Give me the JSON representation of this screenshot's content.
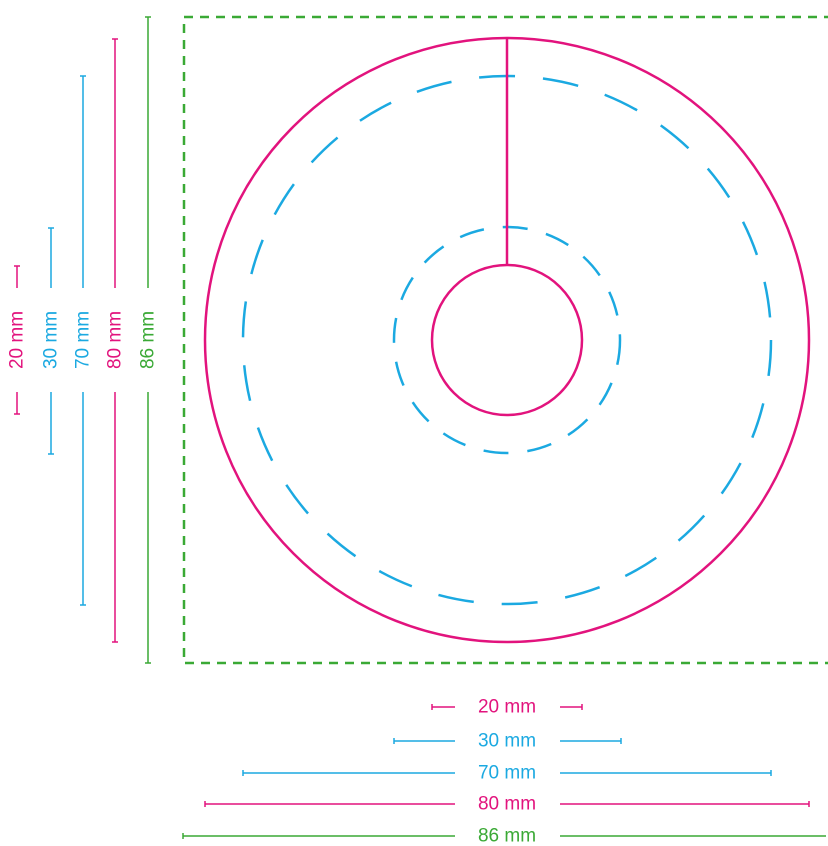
{
  "colors": {
    "pink": "#e2137d",
    "blue": "#1ba9e1",
    "green": "#3aa935"
  },
  "dimensions": [
    {
      "id": "d20",
      "label": "20 mm",
      "color": "pink"
    },
    {
      "id": "d30",
      "label": "30 mm",
      "color": "blue"
    },
    {
      "id": "d70",
      "label": "70 mm",
      "color": "blue"
    },
    {
      "id": "d80",
      "label": "80 mm",
      "color": "pink"
    },
    {
      "id": "d86",
      "label": "86 mm",
      "color": "green"
    }
  ]
}
